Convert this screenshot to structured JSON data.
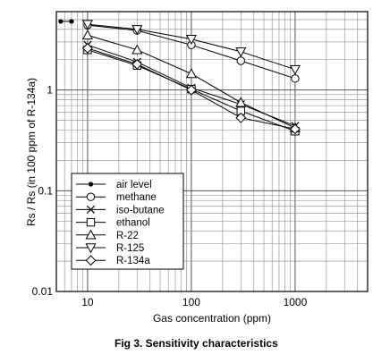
{
  "chart_data": {
    "type": "line",
    "x_scale": "log",
    "y_scale": "log",
    "xlim": [
      5,
      5000
    ],
    "ylim": [
      0.01,
      6
    ],
    "grid": true,
    "legend_position": "bottom-left",
    "x_ticks": [
      {
        "v": 10,
        "label": "10"
      },
      {
        "v": 100,
        "label": "100"
      },
      {
        "v": 1000,
        "label": "1000"
      }
    ],
    "y_ticks": [
      {
        "v": 0.01,
        "label": "0.01"
      },
      {
        "v": 0.1,
        "label": "0.1"
      },
      {
        "v": 1,
        "label": "1"
      }
    ],
    "xlabel": "Gas concentration (ppm)",
    "ylabel": "Rs / Rs (in 100 ppm of R-134a)",
    "caption": "Fig 3. Sensitivity characteristics",
    "series": [
      {
        "name": "air level",
        "marker": "dot",
        "x": [
          5.5,
          7
        ],
        "y": [
          4.8,
          4.8
        ]
      },
      {
        "name": "methane",
        "marker": "circle",
        "x": [
          10,
          30,
          100,
          300,
          1000
        ],
        "y": [
          4.4,
          3.9,
          2.8,
          1.95,
          1.3
        ]
      },
      {
        "name": "iso-butane",
        "marker": "x",
        "x": [
          10,
          30,
          100,
          300,
          1000
        ],
        "y": [
          2.8,
          1.9,
          1.05,
          0.72,
          0.44
        ]
      },
      {
        "name": "ethanol",
        "marker": "square",
        "x": [
          10,
          30,
          100,
          300,
          1000
        ],
        "y": [
          2.5,
          1.75,
          1.02,
          0.62,
          0.39
        ]
      },
      {
        "name": "R-22",
        "marker": "triangle-up",
        "x": [
          10,
          30,
          100,
          300,
          1000
        ],
        "y": [
          3.5,
          2.5,
          1.45,
          0.75,
          0.42
        ]
      },
      {
        "name": "R-125",
        "marker": "triangle-down",
        "x": [
          10,
          30,
          100,
          300,
          1000
        ],
        "y": [
          4.5,
          4.0,
          3.2,
          2.4,
          1.6
        ]
      },
      {
        "name": "R-134a",
        "marker": "diamond",
        "x": [
          10,
          30,
          100,
          300,
          1000
        ],
        "y": [
          2.6,
          1.8,
          1.0,
          0.53,
          0.41
        ]
      }
    ]
  }
}
